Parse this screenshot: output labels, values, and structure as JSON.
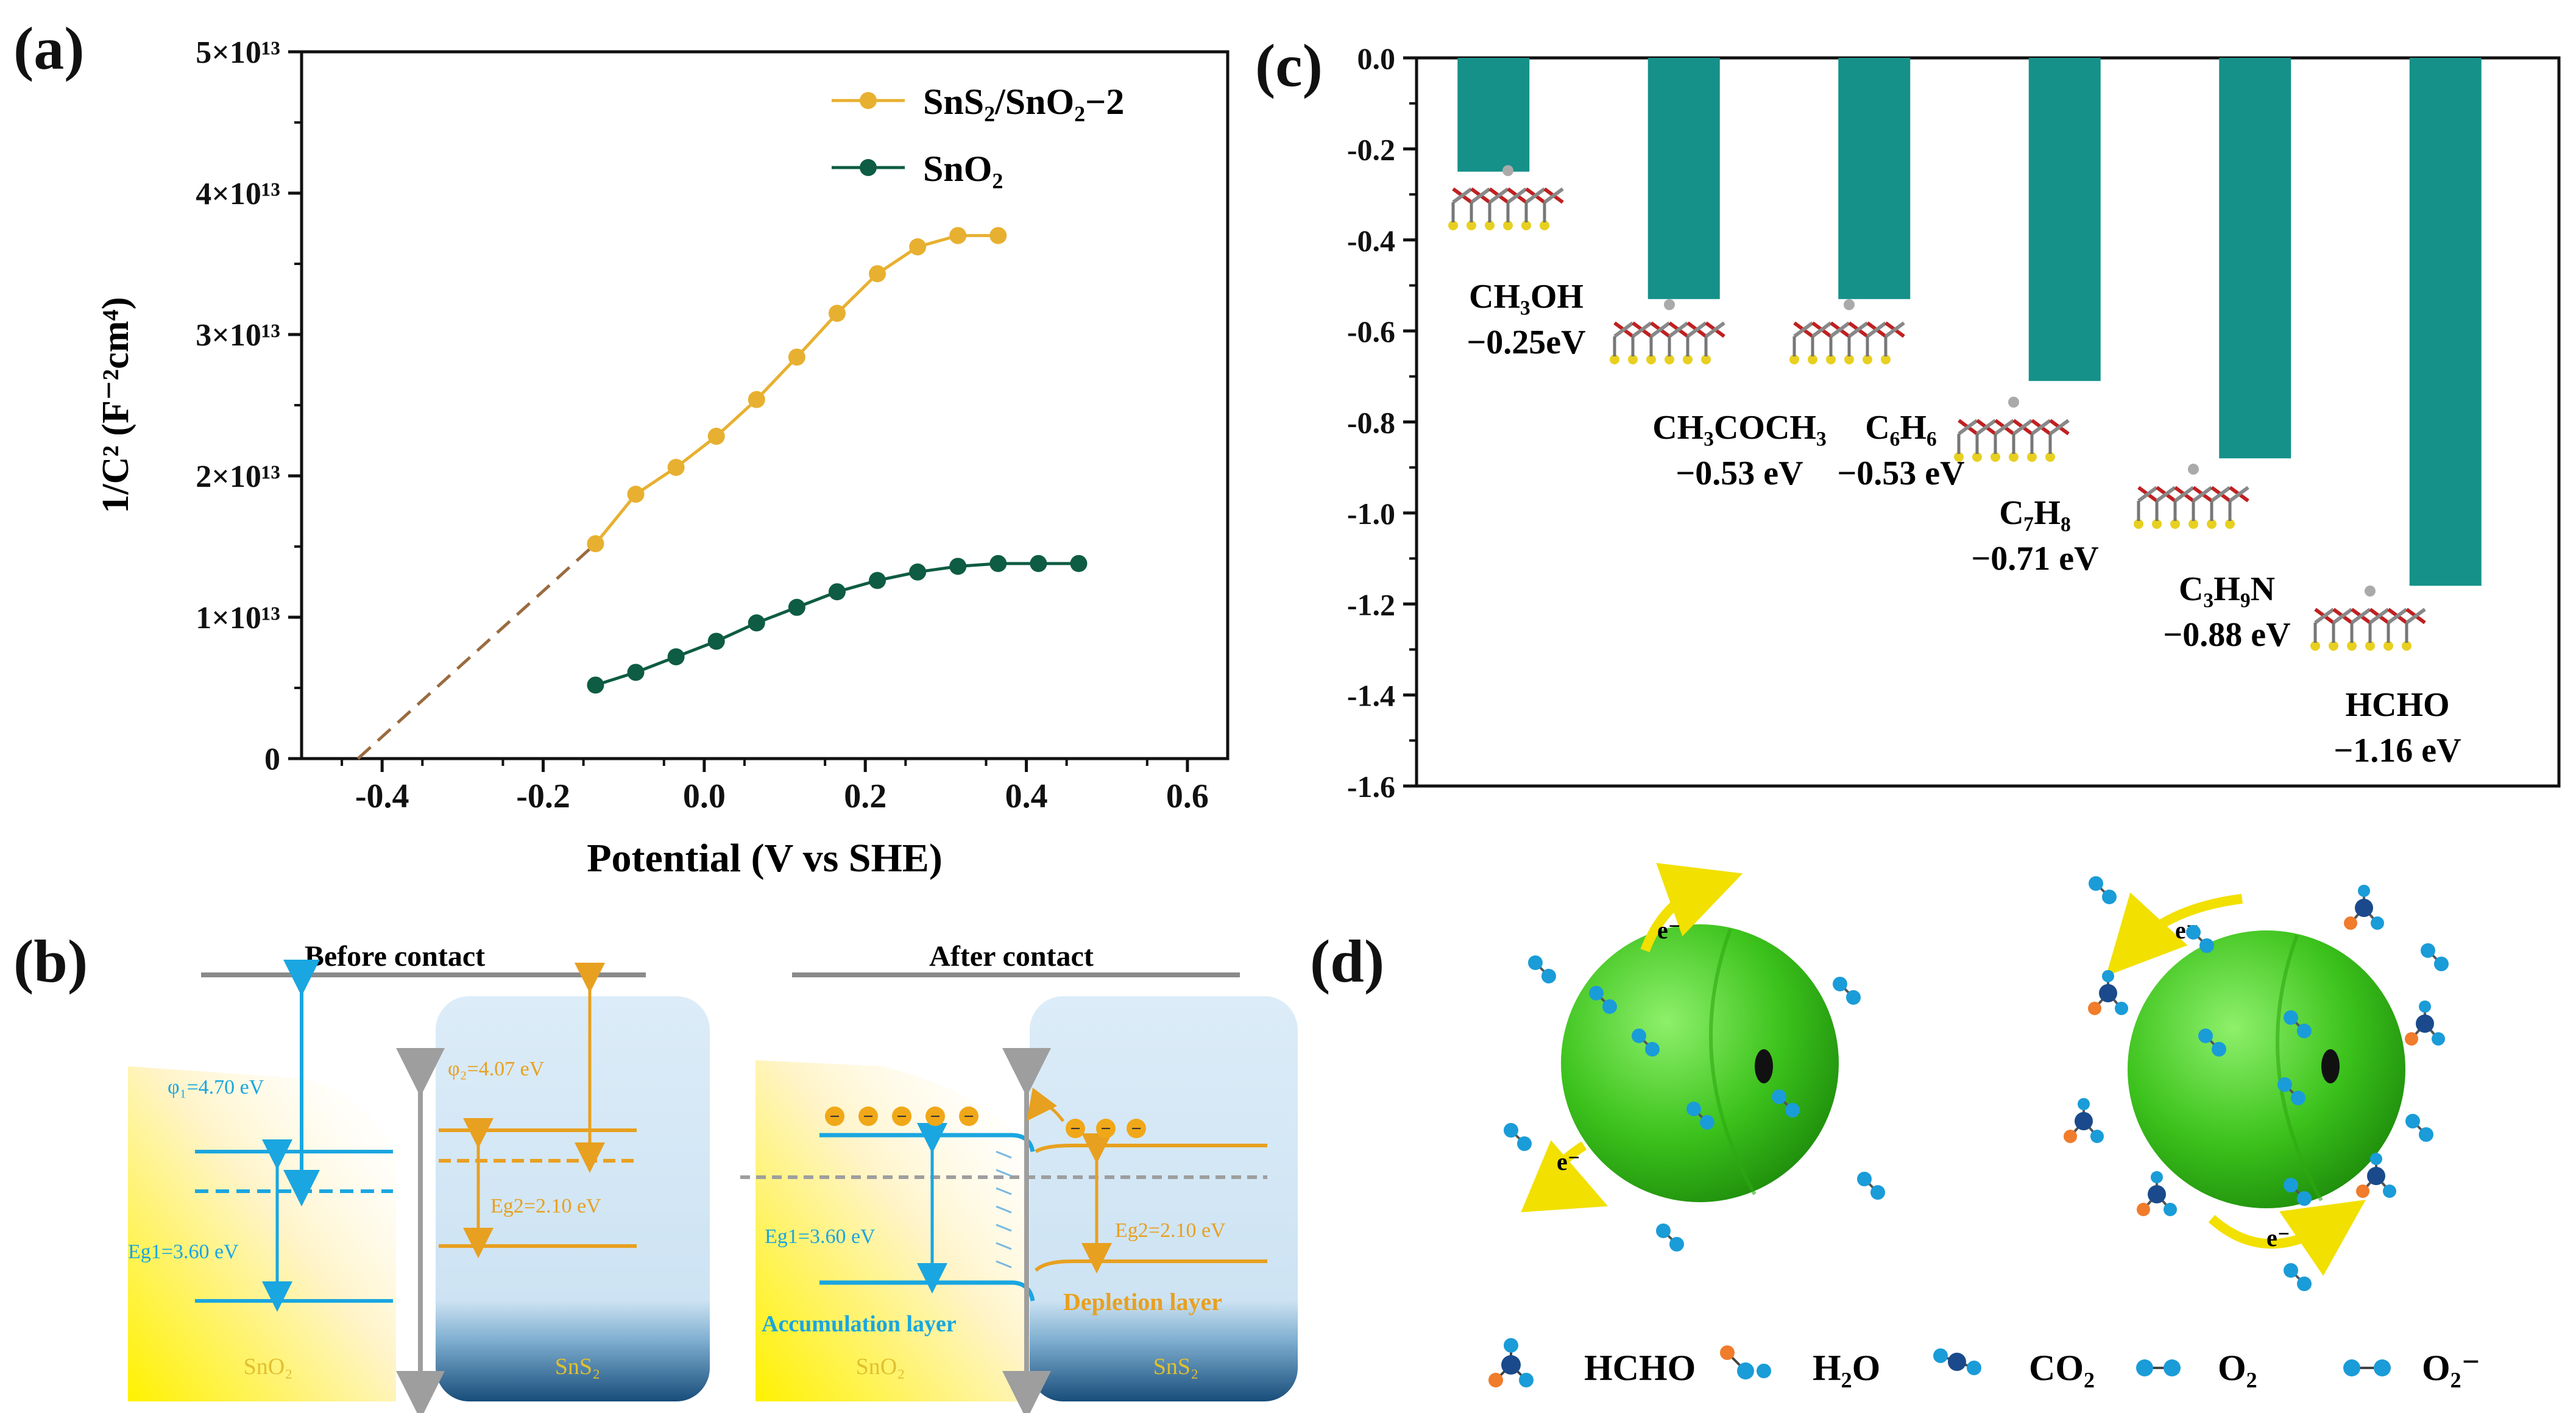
{
  "panels": {
    "a": {
      "label": "(a)"
    },
    "b": {
      "label": "(b)"
    },
    "c": {
      "label": "(c)"
    },
    "d": {
      "label": "(d)"
    }
  },
  "chart_data": [
    {
      "id": "a",
      "type": "scatter",
      "xlabel": "Potential (V vs SHE)",
      "ylabel": "1/C² (F⁻²cm⁴)",
      "xlim": [
        -0.5,
        0.65
      ],
      "ylim": [
        0,
        50000000000000.0
      ],
      "xticks": [
        -0.4,
        -0.2,
        0.0,
        0.2,
        0.4,
        0.6
      ],
      "xtick_labels": [
        "-0.4",
        "-0.2",
        "0.0",
        "0.2",
        "0.4",
        "0.6"
      ],
      "yticks": [
        0,
        10000000000000.0,
        20000000000000.0,
        30000000000000.0,
        40000000000000.0,
        50000000000000.0
      ],
      "ytick_labels": [
        "0",
        "1×10¹³",
        "2×10¹³",
        "3×10¹³",
        "4×10¹³",
        "5×10¹³"
      ],
      "legend_position": "top-right",
      "series": [
        {
          "name": "SnS₂/SnO₂−2",
          "color": "#e8b030",
          "x": [
            -0.135,
            -0.085,
            -0.035,
            0.015,
            0.065,
            0.115,
            0.165,
            0.215,
            0.265,
            0.315,
            0.365
          ],
          "y": [
            15200000000000.0,
            18700000000000.0,
            20600000000000.0,
            22800000000000.0,
            25400000000000.0,
            28400000000000.0,
            31500000000000.0,
            34300000000000.0,
            36200000000000.0,
            37000000000000.0,
            37000000000000.0
          ]
        },
        {
          "name": "SnO₂",
          "color": "#0e5c43",
          "x": [
            -0.135,
            -0.085,
            -0.035,
            0.015,
            0.065,
            0.115,
            0.165,
            0.215,
            0.265,
            0.315,
            0.365,
            0.415,
            0.465
          ],
          "y": [
            5200000000000.0,
            6100000000000.0,
            7200000000000.0,
            8300000000000.0,
            9600000000000.0,
            10700000000000.0,
            11800000000000.0,
            12600000000000.0,
            13200000000000.0,
            13600000000000.0,
            13800000000000.0,
            13800000000000.0,
            13800000000000.0
          ]
        }
      ],
      "extrapolation": {
        "x": [
          -0.43,
          -0.135
        ],
        "y": [
          0,
          15200000000000.0
        ],
        "color": "#9a6b3f"
      }
    },
    {
      "id": "c",
      "type": "bar",
      "ylim": [
        -1.6,
        0.0
      ],
      "yticks": [
        0.0,
        -0.2,
        -0.4,
        -0.6,
        -0.8,
        -1.0,
        -1.2,
        -1.4,
        -1.6
      ],
      "ytick_labels": [
        "0.0",
        "-0.2",
        "-0.4",
        "-0.6",
        "-0.8",
        "-1.0",
        "-1.2",
        "-1.4",
        "-1.6"
      ],
      "bar_color": "#15918a",
      "categories": [
        "CH₃OH",
        "CH₃COCH₃",
        "C₆H₆",
        "C₇H₈",
        "C₃H₉N",
        "HCHO"
      ],
      "values": [
        -0.25,
        -0.53,
        -0.53,
        -0.71,
        -0.88,
        -1.16
      ],
      "value_labels": [
        "−0.25eV",
        "−0.53 eV",
        "−0.53 eV",
        "−0.71 eV",
        "−0.88 eV",
        "−1.16 eV"
      ]
    }
  ],
  "diagram_b": {
    "before_title": "Before contact",
    "after_title": "After contact",
    "phi1": "φ₁=4.70 eV",
    "phi2": "φ₂=4.07 eV",
    "eg1": "Eg1=3.60 eV",
    "eg2": "Eg2=2.10 eV",
    "sno2": "SnO₂",
    "sns2": "SnS₂",
    "accumulation": "Accumulation layer",
    "depletion": "Depletion layer",
    "electron": "−"
  },
  "diagram_d": {
    "electron": "e⁻",
    "legend": [
      "HCHO",
      "H₂O",
      "CO₂",
      "O₂",
      "O₂⁻"
    ]
  },
  "colors": {
    "orange": "#e8a020",
    "blue": "#1aa6e0",
    "gray": "#9e9e9e",
    "green": "#3cc21c"
  }
}
